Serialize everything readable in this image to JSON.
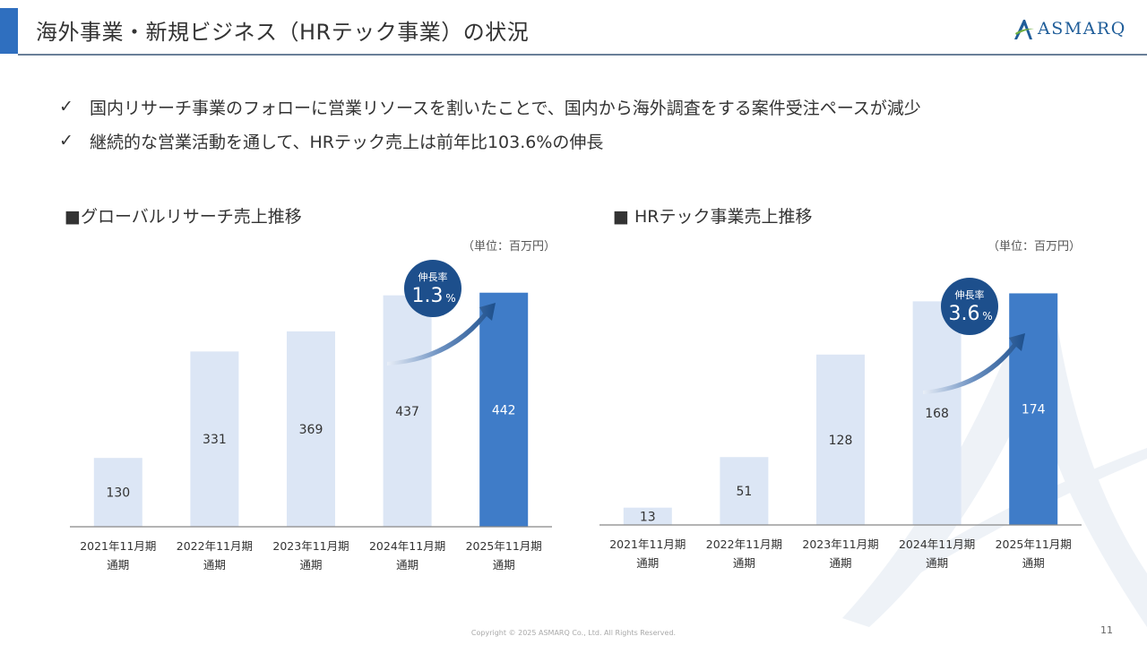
{
  "header": {
    "title": "海外事業・新規ビジネス（HRテック事業）の状況",
    "logo_text": "ASMARQ"
  },
  "bullets": [
    "国内リサーチ事業のフォローに営業リソースを割いたことで、国内から海外調査をする案件受注ペースが減少",
    "継続的な営業活動を通して、HRテック売上は前年比103.6%の伸長"
  ],
  "colors": {
    "accent": "#2f6fbf",
    "bar_light": "#dce6f5",
    "bar_highlight": "#3f7cc8",
    "badge": "#1d4f8c"
  },
  "chart_data": [
    {
      "type": "bar",
      "title": "■グローバルリサーチ売上推移",
      "unit": "（単位：百万円）",
      "categories": [
        [
          "2021年11月期",
          "通期"
        ],
        [
          "2022年11月期",
          "通期"
        ],
        [
          "2023年11月期",
          "通期"
        ],
        [
          "2024年11月期",
          "通期"
        ],
        [
          "2025年11月期",
          "通期"
        ]
      ],
      "values": [
        130,
        331,
        369,
        437,
        442
      ],
      "highlight_index": 4,
      "growth": {
        "label": "伸長率",
        "value": "1.3",
        "unit": "%"
      },
      "ylim": [
        0,
        450
      ]
    },
    {
      "type": "bar",
      "title": "■ HRテック事業売上推移",
      "unit": "（単位：百万円）",
      "categories": [
        [
          "2021年11月期",
          "通期"
        ],
        [
          "2022年11月期",
          "通期"
        ],
        [
          "2023年11月期",
          "通期"
        ],
        [
          "2024年11月期",
          "通期"
        ],
        [
          "2025年11月期",
          "通期"
        ]
      ],
      "values": [
        13,
        51,
        128,
        168,
        174
      ],
      "highlight_index": 4,
      "growth": {
        "label": "伸長率",
        "value": "3.6",
        "unit": "%"
      },
      "ylim": [
        0,
        177
      ]
    }
  ],
  "footer": {
    "copyright": "Copyright © 2025 ASMARQ Co., Ltd. All Rights Reserved.",
    "page": "11"
  }
}
